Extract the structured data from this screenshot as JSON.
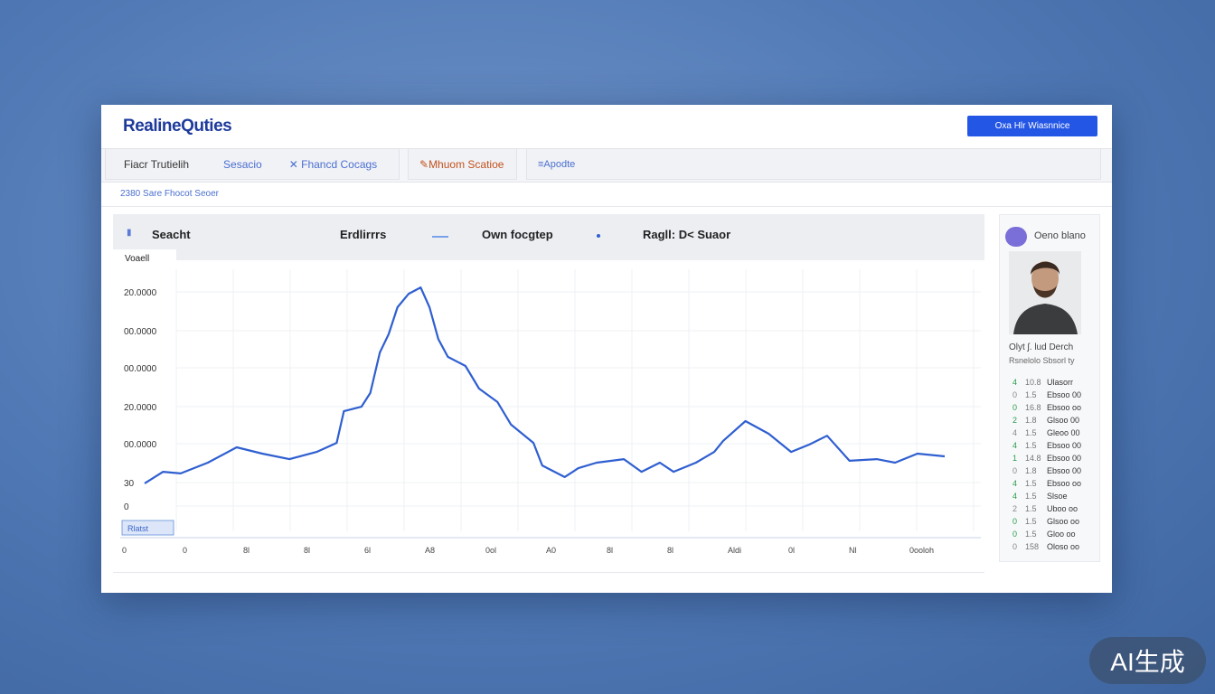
{
  "header": {
    "title": "RealineQuties",
    "button": "Oxa Hlr  Wiasnnice"
  },
  "tabs": [
    "Fiacr Trutielih",
    "Sesacio",
    "Fhancd Cocags",
    "Mhuom Scatioe",
    "≡Apodte"
  ],
  "subtitle": "2380 Sare Fhocot Seoer",
  "chart_header": [
    "Seacht",
    "Erdlirrrs",
    "Own focgtep",
    "Ragll: D< Suaor"
  ],
  "chart": {
    "type": "line",
    "y_label": "Voaell",
    "y_labels": [
      "20.0000",
      "00.0000",
      "00.0000",
      "20.0000",
      "00.0000",
      "30",
      "0"
    ],
    "x_labels": [
      "0",
      "0",
      "8l",
      "8l",
      "6l",
      "A8",
      "0ol",
      "A0",
      "8l",
      "8l",
      "Aldi",
      "0l",
      "Nl",
      "0ooloh"
    ],
    "legend_tag": "Rlatst",
    "color": "#2f5fd0",
    "xlim": [
      0,
      100
    ],
    "ylim": [
      0,
      100
    ],
    "x": [
      0,
      2.3,
      4.5,
      7.9,
      11.5,
      14.7,
      18.1,
      21.5,
      24,
      24.9,
      27.1,
      28.2,
      29.4,
      30.5,
      31.6,
      33,
      34.5,
      35.6,
      36.7,
      37.9,
      40.1,
      41.8,
      44.1,
      45.8,
      48.6,
      49.7,
      52.5,
      54.2,
      56.5,
      59.9,
      62.1,
      64.4,
      66.1,
      68.9,
      71.2,
      72.3,
      75.1,
      78,
      80.8,
      83.1,
      85.3,
      88.1,
      91.5,
      93.8,
      96.6,
      100
    ],
    "values": [
      19.7,
      23.9,
      23.3,
      27.2,
      32.8,
      30.5,
      28.5,
      31.1,
      34.4,
      45.9,
      47.5,
      52.5,
      67.2,
      73.8,
      83.6,
      88.5,
      90.8,
      83.6,
      72.1,
      65.6,
      62.3,
      54.1,
      49.2,
      41.0,
      34.4,
      26.2,
      22.0,
      25.2,
      27.2,
      28.5,
      23.9,
      27.2,
      23.9,
      27.2,
      31.1,
      35.1,
      42.3,
      37.7,
      31.1,
      33.8,
      37.0,
      27.9,
      28.5,
      27.2,
      30.5,
      29.5
    ]
  },
  "profile": {
    "name": "Oeno blano",
    "caption": "Olyt ʃ. lud Derch",
    "role": "Rsnelolo Sbsorl ty",
    "rows": [
      [
        "4",
        "10.8",
        "Ulasorr"
      ],
      [
        "0",
        "1.5",
        "Ebsoo 00"
      ],
      [
        "0",
        "16.8",
        "Ebsoo oo"
      ],
      [
        "2",
        "1.8",
        "Glsoo 00"
      ],
      [
        "4",
        "1.5",
        "Gleoo 00"
      ],
      [
        "4",
        "1.5",
        "Ebsoo 00"
      ],
      [
        "1",
        "14.8",
        "Ebsoo 00"
      ],
      [
        "0",
        "1.8",
        "Ebsoo 00"
      ],
      [
        "4",
        "1.5",
        "Ebsoo oo"
      ],
      [
        "4",
        "1.5",
        "Slsoe"
      ],
      [
        "2",
        "1.5",
        "Uboo oo"
      ],
      [
        "0",
        "1.5",
        "Glsoo oo"
      ],
      [
        "0",
        "1.5",
        "Gloo oo"
      ],
      [
        "0",
        "158",
        "Oloso oo"
      ]
    ]
  },
  "badge": "AI生成"
}
